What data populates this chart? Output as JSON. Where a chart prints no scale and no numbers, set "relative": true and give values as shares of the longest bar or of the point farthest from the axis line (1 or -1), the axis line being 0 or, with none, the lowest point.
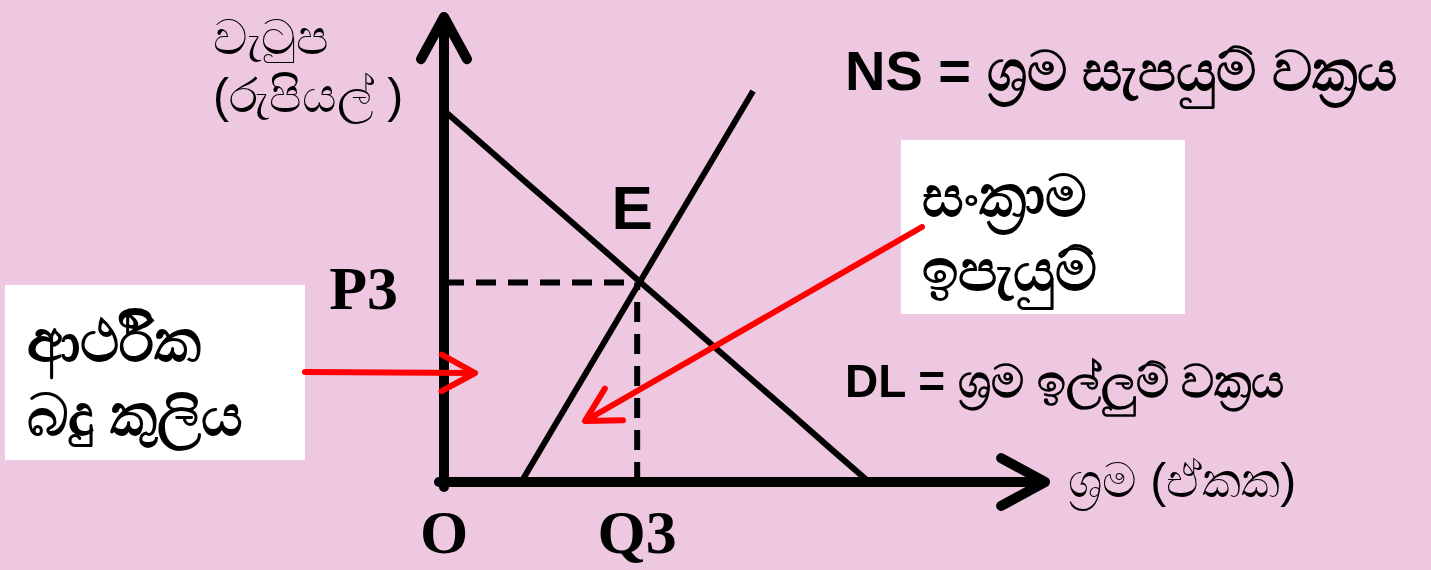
{
  "chart_data": {
    "type": "line",
    "relative": true,
    "xlabel": "ශ්‍රම (ඒකක)",
    "ylabel": "වැටුප\n(රුපියල් )",
    "categories": [
      "O",
      null,
      null,
      null,
      null,
      "Q3",
      null,
      null,
      null,
      null,
      null,
      null
    ],
    "series": [
      {
        "name": "NS = ශ්‍රම සැපයුම් වක්‍රය",
        "color": "#000000",
        "values": [
          null,
          null,
          0,
          0.167,
          0.333,
          0.5,
          0.667,
          0.833,
          1,
          null,
          null,
          null
        ]
      },
      {
        "name": "DL = ශ්‍රම ඉල්ලුම් වක්‍රය",
        "color": "#000000",
        "values": [
          0.95,
          0.864,
          0.777,
          0.691,
          0.605,
          0.518,
          0.432,
          0.345,
          0.259,
          0.173,
          0.086,
          0
        ]
      }
    ],
    "ref_lines": [
      {
        "axis": "y",
        "value": 0.51,
        "label": "P3",
        "color": "#000000",
        "line_style": "dashed"
      },
      {
        "axis": "x",
        "value": "Q3",
        "color": "#000000",
        "line_style": "dashed"
      }
    ],
    "annotations": [
      {
        "text": "E",
        "x": "Q3",
        "y": 0.51
      },
      "ආර්ථික\nබදු කුලිය",
      "සංක්‍රාම\nඉපැයුම්"
    ]
  }
}
